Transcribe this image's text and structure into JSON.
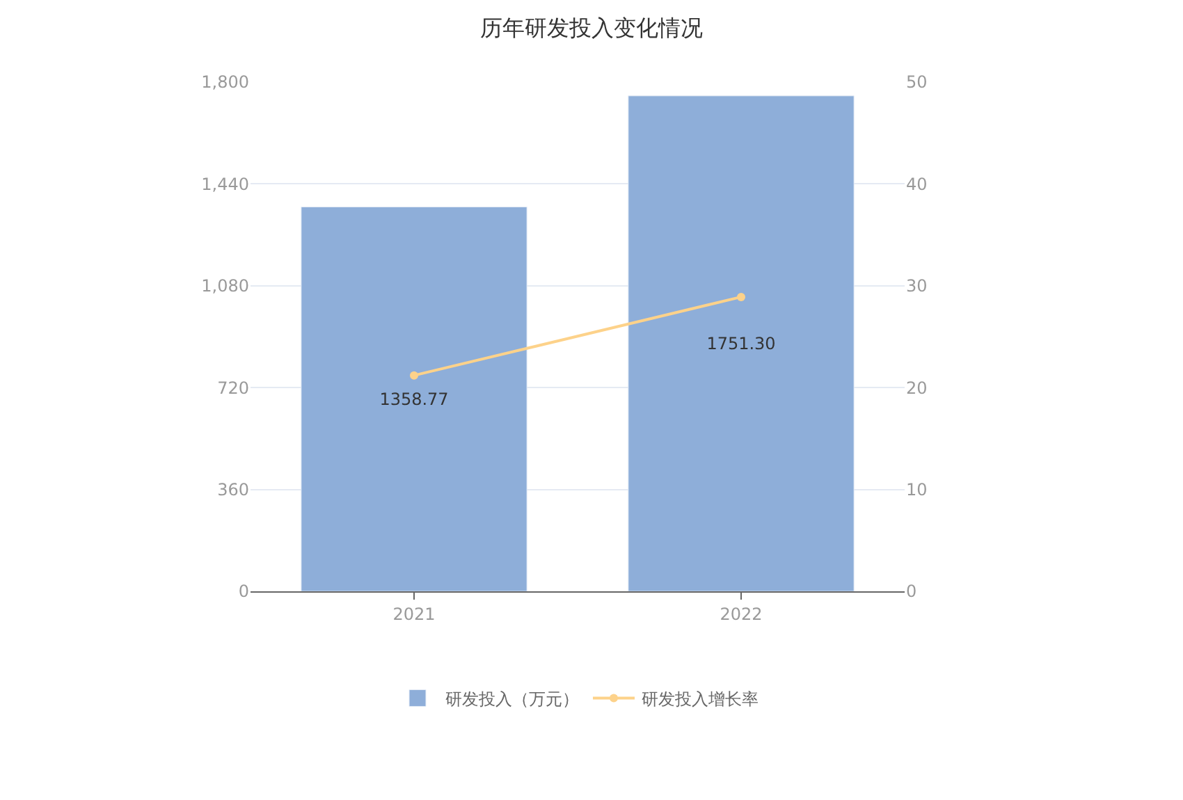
{
  "chart_data": {
    "type": "bar",
    "title": "历年研发投入变化情况",
    "categories": [
      "2021",
      "2022"
    ],
    "series": [
      {
        "name": "研发投入（万元）",
        "color": "#8eaed9",
        "values": [
          1358.77,
          1751.3
        ],
        "value_labels": [
          "1358.77",
          "1751.30"
        ]
      },
      {
        "name": "研发投入增长率",
        "type": "line",
        "axis": "y2",
        "color": "#fdd28a",
        "values": [
          21.2,
          28.9
        ],
        "marker": "circle"
      }
    ],
    "ylim": [
      0,
      1800
    ],
    "yticks": [
      0,
      360,
      720,
      {
        "value": 1080,
        "label": "1,080"
      },
      {
        "value": 1440,
        "label": "1,440"
      },
      {
        "value": 1800,
        "label": "1,800"
      }
    ],
    "y2lim": [
      0,
      50
    ],
    "y2ticks": [
      0,
      10,
      20,
      30,
      40,
      50
    ],
    "grid": "y",
    "legend": "bottom"
  }
}
